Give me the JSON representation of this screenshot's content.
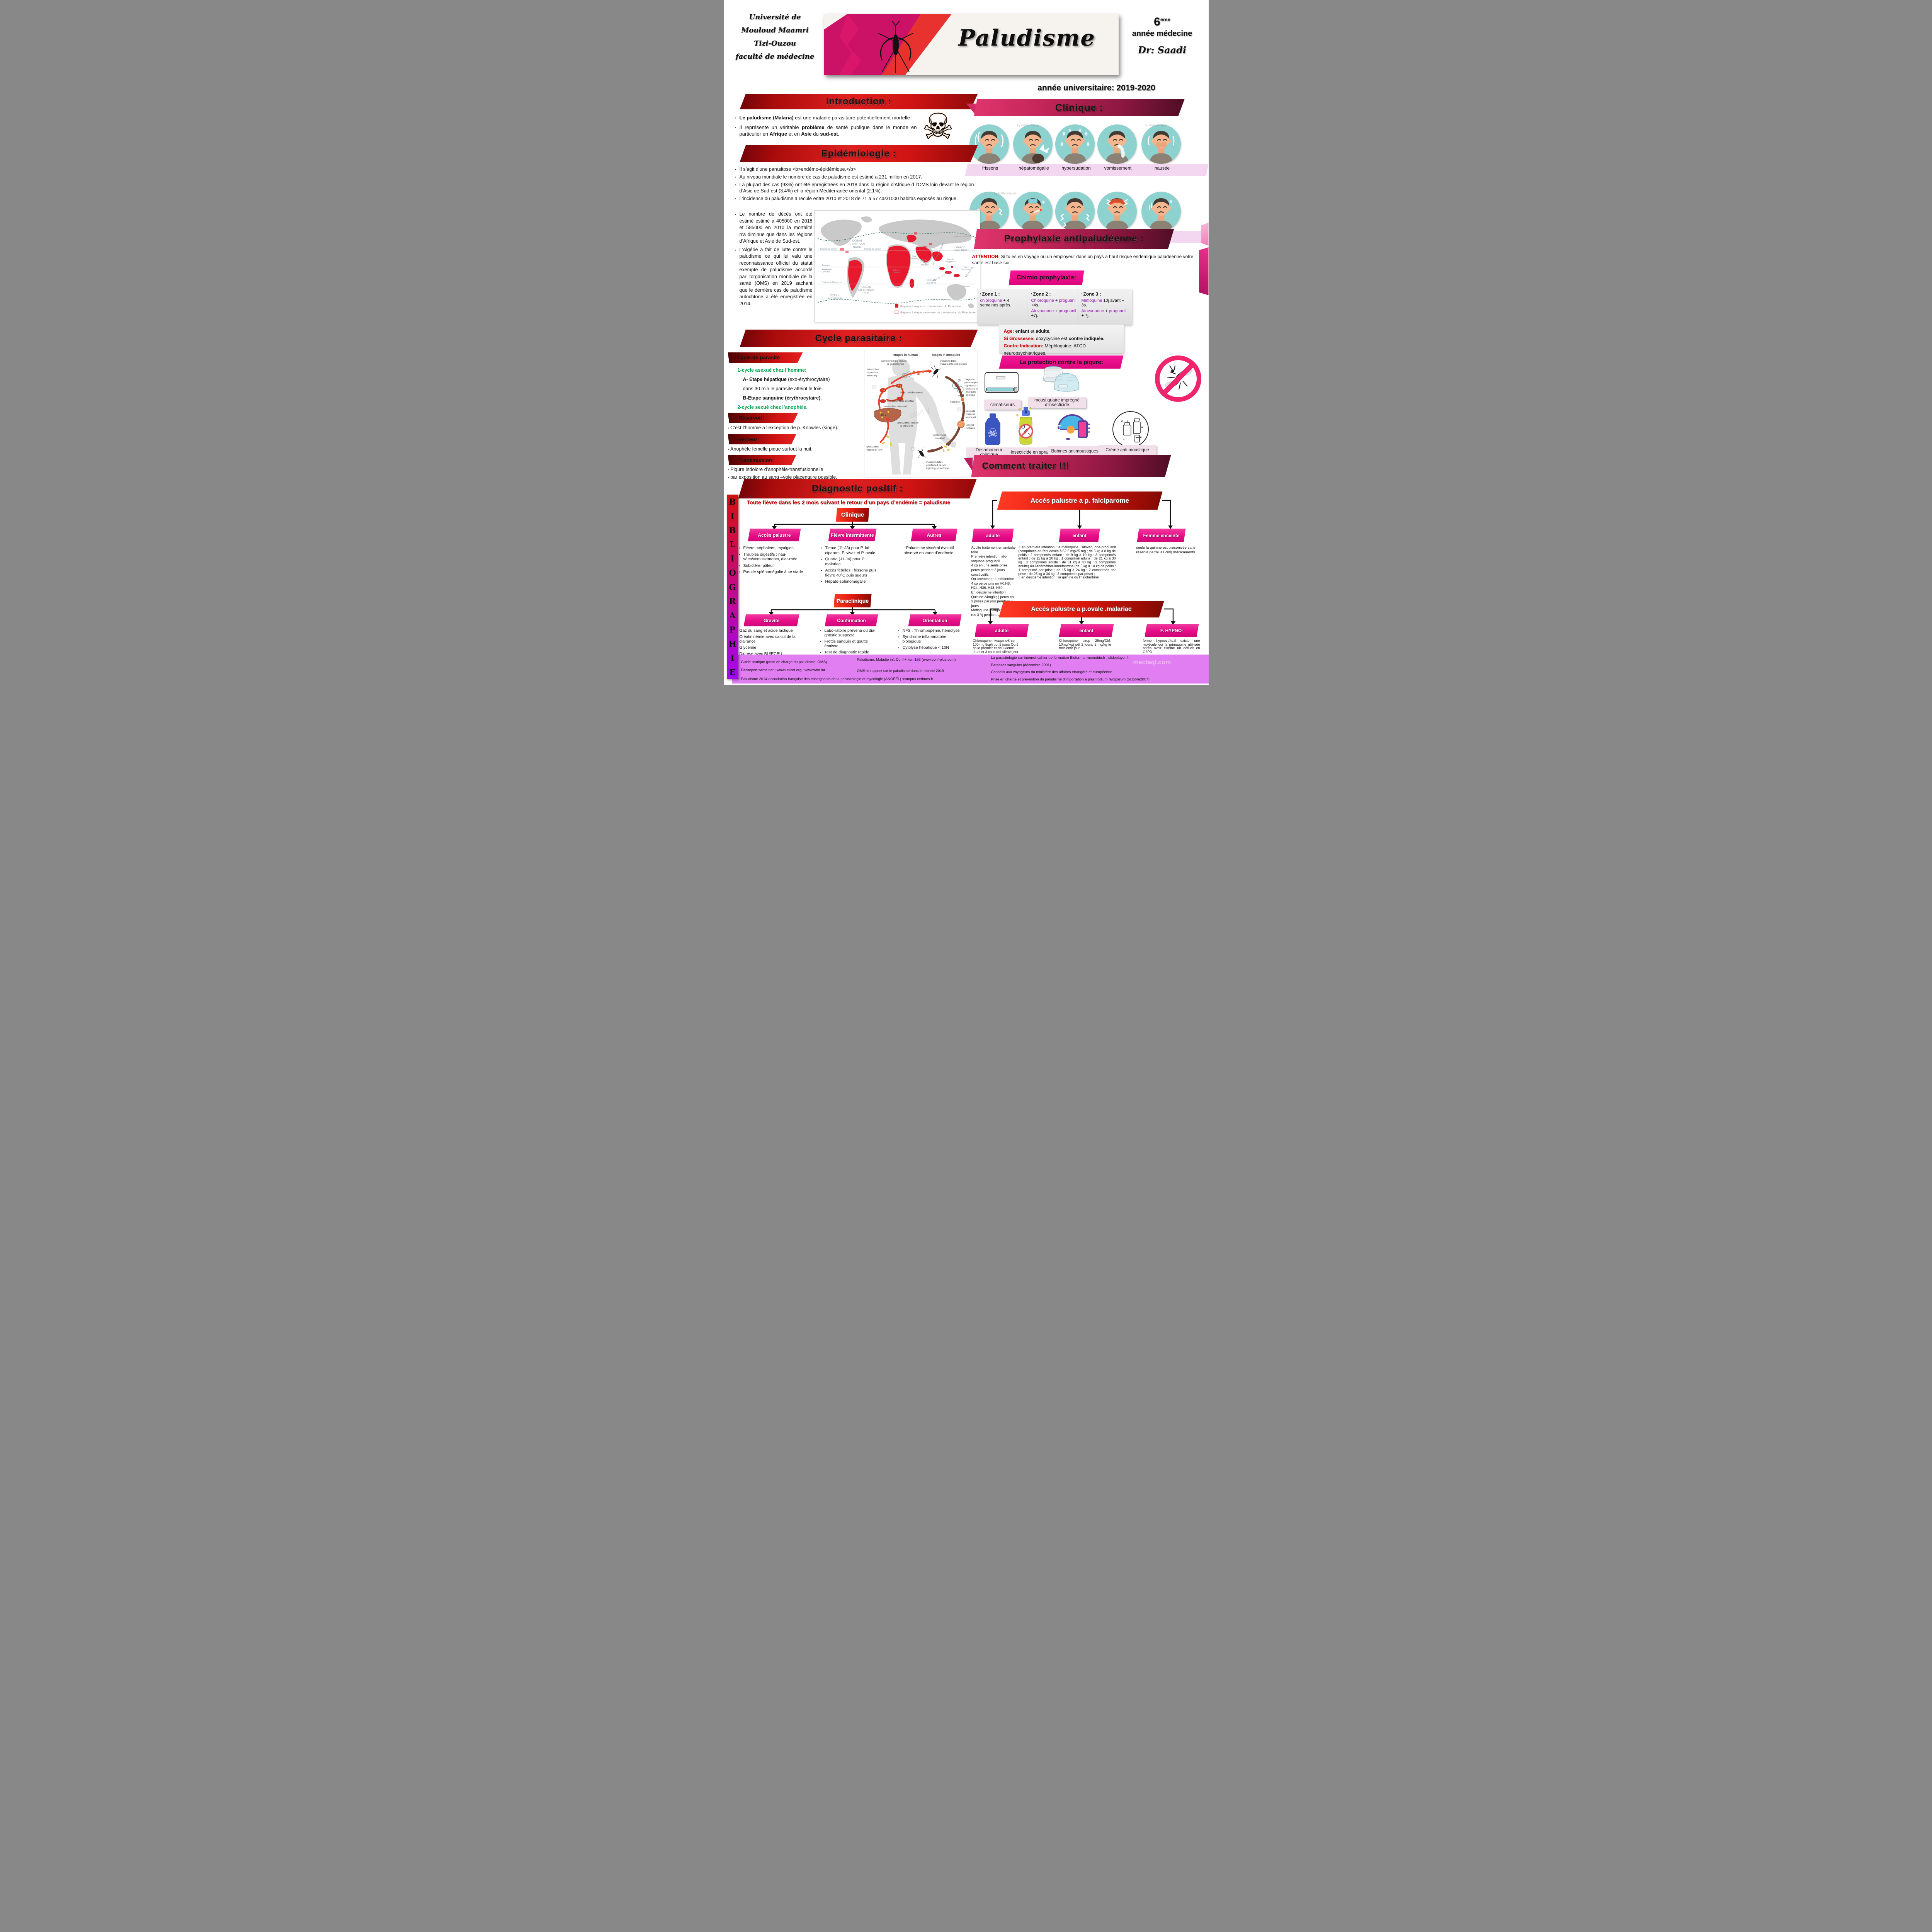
{
  "colors": {
    "banner_red": "#e02020",
    "banner_dark_red": "#6d0408",
    "banner_pink": "#e0356e",
    "banner_maroon": "#4f0d24",
    "bright_pink": "#e70c87",
    "node_red": "#e21a0e",
    "label_strip_pink": "#f3d7f0",
    "protection_label": "#f1dfe9",
    "purple_band": "#e07ef2",
    "green_text": "#00a550",
    "purple_drug": "#951bb5",
    "attention_red": "#cc0000",
    "teal_circle": "#8ed2d0",
    "biblio_bar_top": "#d21111",
    "biblio_bar_bottom": "#a505ef"
  },
  "header": {
    "university": [
      "Université de",
      "Mouloud Maamri",
      "Tizi-Ouzou",
      "faculté de médecine"
    ],
    "title": "Paludisme",
    "year_num": "6",
    "year_sup": "eme",
    "year_line": "année médecine",
    "doctor": "Dr: Saadi",
    "academic_year": "année universitaire: 2019-2020",
    "mosquito_icon": "mosquito-silhouette"
  },
  "intro": {
    "heading": "Introduction :",
    "b1": "<b>Le paludisme (Malaria)</b> est une maladie parasitaire potentiellement mortelle .",
    "b2": "Il représente un véritable <b>problème</b> de santé publique dans le monde en particulier en <b>Afrique</b> et en <b>Asie</b> du <b>sud-est.</b>",
    "skull_icon": "skull-crossbones"
  },
  "clinique": {
    "heading": "Clinique :",
    "row1": [
      "frissons",
      "hépatomégalie",
      "hypersudation",
      "vomissement",
      "nausée"
    ],
    "row2": [
      "Douleur vertébral",
      "fièvre",
      "myalgies",
      "céphalée",
      "fatigue"
    ],
    "watermark": "by Getty Images"
  },
  "epidemiologie": {
    "heading": "Epidémiologie :",
    "bullets": [
      "Il s’agit d’une parasitose <b>endémo-épidémique.</b>",
      "Au niveau mondiale le nombre de cas de paludisme est estimé a 231 million en 2017.",
      "La plupart des cas (93%) ont été enregistrées en 2018 dans la région d’Afrique d l’OMS loin devant le région d’Asie de Sud-est (3.4%) et la région Méditerranée oriental (2.1%).",
      "L’incidence du paludisme a reculé entre 2010 et 2018 de 71 a 57 cas/1000 habitas exposés au risque."
    ],
    "side_bullets": [
      "Le nombre de décès ont été estimé estimé a 405000 en 2018 et 585000 en 2010 la mortalité n’a diminue que dans les régions d’Afrique et Asie de Sud-est.",
      "L’Algérie a fait de lutte contre le paludisme ce qui lui valu une reconnaissance officiel du statut exempte de paludisme accordé par l’organisation mondiale de la santé (OMS) en 2019 sachant que le dernière cas de paludisme autochtone a été enregistrée en 2014."
    ],
    "map": {
      "legend1": "Régions à risque de transmission du Paludisme",
      "legend2": "Régions à risque saisonnier de transmission du Paludisme",
      "labels": [
        "OCÉAN ATLANTIQUE NORD",
        "OCÉAN PACIFIQUE",
        "OCÉAN ATLANTIQUE SUD",
        "OCÉAN INDIEN",
        "OCÉAN PACIFIQUE",
        "Mer d’Arabie",
        "Golfe du Bengale",
        "Golfe de Guinée",
        "Mer de Chine Méridionale",
        "Mer de Philippines",
        "ÎLES DE LA SONDE",
        "MÉLANÉSIE",
        "Îles Salomon",
        "Vanuatu",
        "Tropique du Cancer",
        "Équateur",
        "Tropique du Capricorne",
        "1000 Km"
      ]
    }
  },
  "cycle": {
    "heading": "Cycle parasitaire :",
    "label": "Cycle de parasite :",
    "lines": [
      "<span class='g'>1-cycle asexué chez l’homme:</span>",
      "<b>A- Etape hépatique</b> (exo-érythrocytaire)",
      "dans 30 min le parasite atteint le foie.",
      "<b>B-Etape sanguine (érythrocytaire)</b>.",
      "<span class='g'>2-cycle sexué chez l’anophèle.</span>"
    ],
    "reservoir_label": "Réservoir:",
    "reservoir": "C’est l’homme a l’exception de p. Knowles (singe).",
    "vecteur_label": "Vecteur:",
    "vecteur": "Anophèle femelle pique surtout la nuit.",
    "transmission_label": "Transmission:",
    "transmission": [
      "Piqure indolore d’anophèle-transfusionnelle",
      "par exposition au sang –voie placentaire possible."
    ],
    "diagram": {
      "watermark": "alamy",
      "labels": [
        "stages in human",
        "stages in mosquito",
        "some offspring mature to gametocytes",
        "merozoites reproduce asexually",
        "blood cell destroyed",
        "red blood cells infected",
        "merozoites released",
        "liver",
        "sporozoites mature to schizonts",
        "sporozoites migrate to liver",
        "mosquito bites malaria-infected person",
        "ingested gametocytes reproduce sexually in mosquito mid-gut",
        "ookinete",
        "ookinete matures to oocyst",
        "oocyst ruptures",
        "sporozoites released",
        "mosquito bites uninfected person, injecting sporozoites"
      ]
    }
  },
  "prophylaxie": {
    "heading": "Prophylaxie antipaludéenne :",
    "attention": "<span class='rb'>ATTENTION:</span> Si tu es en voyage ou un employeur dans un pays a haut risque endémique paludéenne votre santé est basé sur :",
    "chimio_title": "Chimio prophylaxie:",
    "zones": [
      {
        "title": "Zone 1 :",
        "l1": "<span class='pp'>chloroquine</span> + 4 semaines après.",
        "l2": ""
      },
      {
        "title": "Zone 2 :",
        "l1": "<span class='pp'>Chloroquine</span> + <span class='pp'>proguanil</span> +4s.",
        "l2": "<span class='pp'>Atovaquone</span> + <span class='pp'>proguanil</span> +7j."
      },
      {
        "title": "Zone 3 :",
        "l1": "<span class='pp'>Méfloquine</span> 10j avant + 3s.",
        "l2": "<span class='pp'>Atovaquone</span> + <span class='pp'>proguanil</span> + 7j."
      }
    ],
    "age_lines": [
      "<span class='rb'>Age:</span> <b>enfant</b> et <b>adulte.</b>",
      "<span class='rb'>Si Grossesse:</span> doxycycline est <b>contre indiquée.</b>",
      "<span class='rb'>Contre Indication:</span> Méphloquine: ATCD&nbsp; neuropsychiatriques."
    ],
    "protection_title": "La protection contre la piqure:",
    "labels_row1": [
      "climatiseurs",
      "moustiquaire imprégné d’insecticide"
    ],
    "labels_row2": [
      "Désamorceur chimique",
      "insecticide en spray",
      "Bobines antimoustiques",
      "Crème  anti moustique"
    ]
  },
  "traiter": {
    "heading": "Comment traiter !!!",
    "falciparum": {
      "title": "Accés palustre a p. falciparome",
      "cats": [
        "adulte",
        "enfant",
        "Femme enceinte"
      ],
      "adulte": "Adulte traitement en ambula-toire\nPremière intention: ato-vaquone-proguanil\n 4 cp en une seule prise peros pendant 3 jours consécutifs\nOu artémether-luméfantrine 4 cp peros pris en H0,H8, H24, H36, H48, H60\nEn deuxieme intention\nQuinine 24mg/kg/j peros en 3 prises par jour pendant 7 jours\nMefloquine 25mg/kg/jour pe-ros 3 */j pendant un seul jr",
      "enfant": "○ en première intention : la méfloquine, l’atovaquone-proguanil (comprimés en-fant dosés à 62,5 mg/25 mg ; de 5 kg à 8 kg de poids : 2 comprimés enfant ; de 9 kg à 10 kg : 3 comprimés enfant ; de 11 kg à 20 kg : 1 comprimé adulte ; de 21 kg à 30 kg : 2 comprimés adulte ; de 31 kg à 40 kg : 3 comprimés adulte) ou l’artéméther-luméfantrine (de 5 kg à 14 kg de poids : 1 comprimé par prise ; de 15 kg à 24 kg : 2 comprimés par prise ; de 25 kg à 34 kg : 3 comprimés par prise) ;\n○ en deuxième intention : la quinine ou l’halofantrine",
      "femme": "seule la quinine est préconisée sans réserve parmi les cinq médicaments"
    },
    "ovale": {
      "title": "Accés palustre a p.ovale .malariae",
      "cats": [
        "adulte",
        "enfant",
        "F. HYPNO-"
      ],
      "adulte": "Chloroquine nivaquine® cp 100 mg 5cp/j pdt 5 jours Ou 6 cp le premier et deu-xième jours et 3 cp le troi-sième jour",
      "enfant": "Chloroquine sirop 25mg/CM: 10mg/kg/j pdt 2 jours, 5 mg/kg le troisième jour",
      "hypno": "forme hypnozoïte,il existe une molécule qui la primaquine utili-sée  après avoir éliminé un défi-cit en G6PD"
    }
  },
  "diagnostic": {
    "heading": "Diagnostic positif :",
    "alert": "Toute fièvre dans les 2 mois suivant le retour d’un pays d’endémie = paludisme",
    "clinique_node": "Clinique",
    "branch1_label": "Accès palustre",
    "branch1": [
      "Fièvre, céphalées, myalgies",
      "Troubles digestifs : nau-sées/vomissements, diar-rhée",
      "Subictère, pâleur",
      "Pas de splénomégalie à ce stade"
    ],
    "branch2_label": "Fièvre intermittente",
    "branch2": [
      "Tierce (J1-J3) pour P. fal-ciparum, P. vivax et P. ovale.",
      "Quarte (J1-J4) pour P. malariae",
      "Accès fébriles : frissons puis fièvre 40°C puis sueurs",
      "Hépato-splénomégalie"
    ],
    "branch3_label": "Autres",
    "branch3": [
      "- Paludisme viscéral évolutif observé en zone d’endémie"
    ],
    "paraclinique_node": "Paraclinique",
    "gravite_label": "Gravité",
    "gravite": [
      "Gaz du sang et acide lactique",
      "Créatininémie avec calcul de la clairance",
      "Glycémie",
      "Diurèse avec BU/ECBU"
    ],
    "confirmation_label": "Confirmation",
    "confirmation": [
      "Labo-ratoire prévenu du dia-gnostic suspecté",
      "Frottis sanguin et goutte épaisse",
      "Test de diagnostic rapide"
    ],
    "orientation_label": "Orientation",
    "orientation": [
      "NFS : Thrombopénie, hémolyse",
      "Syndrome inflammatoire biologique",
      "Cytolyse hépatique < 10N"
    ]
  },
  "biblio": {
    "vertical": "BIBLIOGRAPHIE",
    "col1": [
      "Guide pratique (prise en charge du paludisme, OMS)",
      "Passeport sante.net ; www.unicef.org ; www.who.int",
      "Paludisme 2014-association française des enseignants de la parasitologie et mycologie (ANOFEL) :campus.cerimes.fr"
    ],
    "col2": [
      "Paludisme. Maladie  inf. Confi+ item166 (www.conf-plus.com)",
      "OMS-le rapport sur le paludisme dans le monde 2019"
    ],
    "col3": [
      "La parasitologie sur internet-cahier de formation Bioforma -memobio.fr ; slideplayer.fr",
      "Parasites sanguins (décembre 2001)",
      "Conseils aux voyageurs du ministère des affaires étrangère et européenne",
      "Prise en charge et prévention du paludisme d’importation à plasmodium falciparum (octobre2007)"
    ],
    "watermark": "mectaql.com"
  }
}
